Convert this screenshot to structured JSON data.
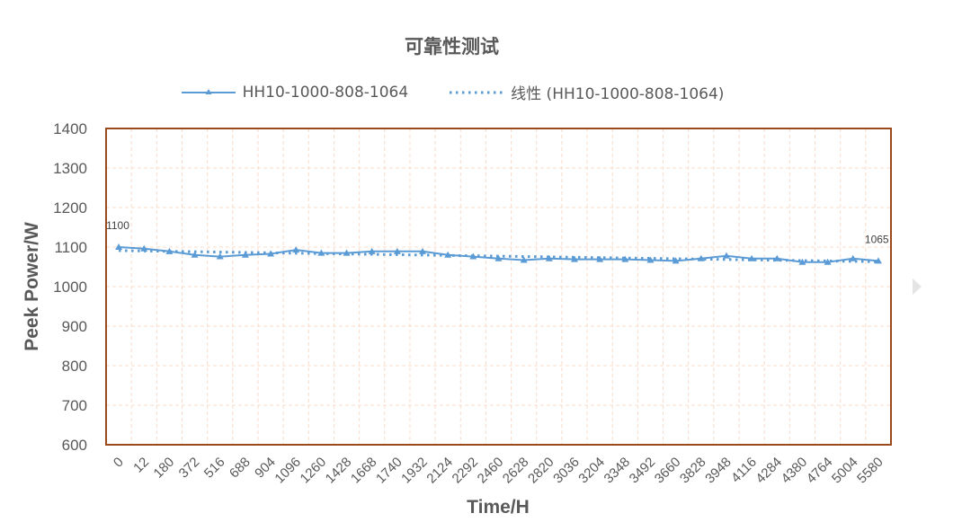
{
  "chart_data": {
    "type": "line",
    "title": "可靠性测试",
    "xlabel": "Time/H",
    "ylabel": "Peek Power/W",
    "ylim": [
      600,
      1400
    ],
    "y_ticks": [
      1400,
      1300,
      1200,
      1100,
      1000,
      900,
      800,
      700,
      600
    ],
    "grid": true,
    "legend_position": "top",
    "categories": [
      "0",
      "12",
      "180",
      "372",
      "516",
      "688",
      "904",
      "1096",
      "1260",
      "1428",
      "1668",
      "1740",
      "1932",
      "2124",
      "2292",
      "2460",
      "2628",
      "2820",
      "3036",
      "3204",
      "3348",
      "3492",
      "3660",
      "3828",
      "3948",
      "4116",
      "4284",
      "4380",
      "4764",
      "5004",
      "5580"
    ],
    "series": [
      {
        "name": "HH10-1000-808-1064",
        "style": "solid-line-with-markers",
        "color": "#5b9bd5",
        "values": [
          1100,
          1096,
          1089,
          1080,
          1076,
          1080,
          1083,
          1093,
          1085,
          1085,
          1089,
          1089,
          1089,
          1080,
          1076,
          1071,
          1067,
          1071,
          1069,
          1069,
          1069,
          1067,
          1065,
          1071,
          1078,
          1071,
          1071,
          1062,
          1062,
          1071,
          1065
        ]
      },
      {
        "name": "线性 (HH10-1000-808-1064)",
        "style": "dotted-trendline",
        "color": "#5b9bd5",
        "type": "linear-trendline"
      }
    ],
    "annotations": [
      {
        "category": "0",
        "label": "1100"
      },
      {
        "category": "5580",
        "label": "1065"
      }
    ]
  },
  "legend": {
    "series_label": "HH10-1000-808-1064",
    "trend_label": "线性 (HH10-1000-808-1064)"
  },
  "colors": {
    "series": "#5b9bd5",
    "plot_border": "#9a4a1c",
    "grid": "#f9dccb",
    "text": "#595959"
  }
}
